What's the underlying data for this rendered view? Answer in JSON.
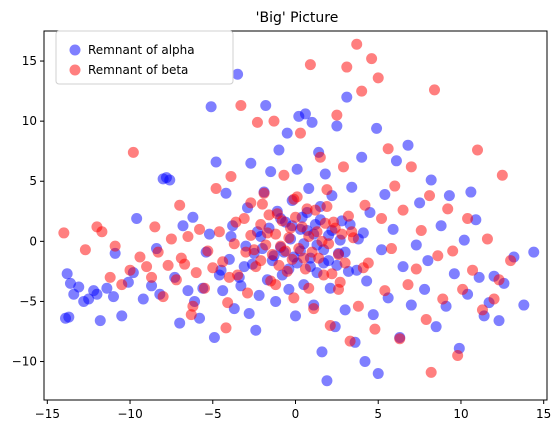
{
  "chart_data": {
    "type": "scatter",
    "title": "'Big' Picture",
    "xlabel": "",
    "ylabel": "",
    "xlim": [
      -15.2,
      15.2
    ],
    "ylim": [
      -13.2,
      17.5
    ],
    "x_ticks": [
      -15,
      -10,
      -5,
      0,
      5,
      10,
      15
    ],
    "y_ticks": [
      -10,
      -5,
      0,
      5,
      10,
      15
    ],
    "grid": false,
    "legend_position": "top-left",
    "series": [
      {
        "name": "Remnant of alpha",
        "color": "#0000ff",
        "alpha": 0.5,
        "points": [
          [
            -13.9,
            -6.4
          ],
          [
            -13.7,
            -6.3
          ],
          [
            -13.8,
            -2.7
          ],
          [
            -13.6,
            -3.5
          ],
          [
            -13.4,
            -4.4
          ],
          [
            -13.1,
            -3.8
          ],
          [
            -12.8,
            -5.0
          ],
          [
            -12.5,
            -4.8
          ],
          [
            -12.2,
            -4.1
          ],
          [
            -12.0,
            -4.4
          ],
          [
            -11.8,
            -6.6
          ],
          [
            -11.4,
            -3.9
          ],
          [
            -11.0,
            -4.6
          ],
          [
            -10.9,
            -1.0
          ],
          [
            -10.5,
            -6.2
          ],
          [
            -10.1,
            -3.4
          ],
          [
            -9.8,
            -2.6
          ],
          [
            -9.6,
            1.9
          ],
          [
            -9.2,
            -4.8
          ],
          [
            -8.7,
            -3.7
          ],
          [
            -8.4,
            -0.6
          ],
          [
            -8.2,
            -4.4
          ],
          [
            -8.0,
            5.2
          ],
          [
            -7.8,
            5.3
          ],
          [
            -7.6,
            5.1
          ],
          [
            -7.3,
            -3.0
          ],
          [
            -7.0,
            -6.8
          ],
          [
            -6.8,
            1.3
          ],
          [
            -6.5,
            -4.1
          ],
          [
            -6.2,
            2.0
          ],
          [
            -6.1,
            -5.0
          ],
          [
            -5.8,
            -6.4
          ],
          [
            -5.6,
            -3.9
          ],
          [
            -5.4,
            -0.9
          ],
          [
            -5.2,
            0.6
          ],
          [
            -5.1,
            11.2
          ],
          [
            -4.9,
            -8.0
          ],
          [
            -4.8,
            6.6
          ],
          [
            -4.6,
            -2.8
          ],
          [
            -4.4,
            -4.1
          ],
          [
            -4.2,
            4.0
          ],
          [
            -4.0,
            -1.5
          ],
          [
            -3.8,
            1.3
          ],
          [
            -3.7,
            -5.6
          ],
          [
            -3.5,
            13.9
          ],
          [
            -3.4,
            -3.0
          ],
          [
            -3.1,
            -2.1
          ],
          [
            -2.9,
            2.8
          ],
          [
            -2.8,
            -6.0
          ],
          [
            -2.7,
            6.5
          ],
          [
            -2.5,
            -1.0
          ],
          [
            -2.4,
            -7.4
          ],
          [
            -2.2,
            -4.5
          ],
          [
            -2.1,
            0.4
          ],
          [
            -1.9,
            4.1
          ],
          [
            -1.8,
            11.3
          ],
          [
            -1.7,
            -3.2
          ],
          [
            -1.5,
            5.8
          ],
          [
            -1.4,
            -1.6
          ],
          [
            -1.2,
            -5.0
          ],
          [
            -1.1,
            2.5
          ],
          [
            -1.0,
            7.6
          ],
          [
            -0.9,
            -0.5
          ],
          [
            -0.8,
            -2.8
          ],
          [
            -0.6,
            1.6
          ],
          [
            -0.5,
            9.0
          ],
          [
            -0.4,
            -4.0
          ],
          [
            -0.3,
            0.2
          ],
          [
            -0.2,
            3.4
          ],
          [
            -0.1,
            -1.3
          ],
          [
            0.0,
            -6.2
          ],
          [
            0.1,
            6.0
          ],
          [
            0.2,
            10.4
          ],
          [
            0.3,
            -0.8
          ],
          [
            0.4,
            2.0
          ],
          [
            0.5,
            -3.6
          ],
          [
            0.6,
            10.6
          ],
          [
            0.7,
            0.9
          ],
          [
            0.8,
            4.4
          ],
          [
            0.9,
            -2.1
          ],
          [
            1.0,
            9.9
          ],
          [
            1.1,
            -5.3
          ],
          [
            1.2,
            1.4
          ],
          [
            1.3,
            -0.3
          ],
          [
            1.4,
            7.4
          ],
          [
            1.5,
            2.9
          ],
          [
            1.6,
            -9.2
          ],
          [
            1.7,
            -1.8
          ],
          [
            1.8,
            5.6
          ],
          [
            1.9,
            -11.6
          ],
          [
            2.0,
            0.5
          ],
          [
            2.1,
            -3.9
          ],
          [
            2.2,
            3.8
          ],
          [
            2.4,
            -7.1
          ],
          [
            2.5,
            9.6
          ],
          [
            2.6,
            -1.0
          ],
          [
            2.8,
            1.7
          ],
          [
            3.0,
            -5.7
          ],
          [
            3.1,
            12.0
          ],
          [
            3.2,
            -2.5
          ],
          [
            3.4,
            4.5
          ],
          [
            3.6,
            -8.4
          ],
          [
            3.8,
            0.2
          ],
          [
            4.0,
            7.0
          ],
          [
            4.2,
            -10.0
          ],
          [
            4.3,
            -3.3
          ],
          [
            4.5,
            2.4
          ],
          [
            4.7,
            -6.1
          ],
          [
            4.9,
            9.4
          ],
          [
            5.0,
            -11.0
          ],
          [
            5.2,
            -0.7
          ],
          [
            5.4,
            3.9
          ],
          [
            5.6,
            -4.7
          ],
          [
            5.9,
            1.0
          ],
          [
            6.1,
            6.7
          ],
          [
            6.3,
            -8.0
          ],
          [
            6.5,
            -2.1
          ],
          [
            6.8,
            8.0
          ],
          [
            7.0,
            -5.3
          ],
          [
            7.3,
            -0.3
          ],
          [
            7.5,
            3.2
          ],
          [
            7.8,
            -4.0
          ],
          [
            8.0,
            -1.6
          ],
          [
            8.2,
            5.1
          ],
          [
            8.5,
            -7.1
          ],
          [
            8.8,
            1.3
          ],
          [
            9.1,
            -5.4
          ],
          [
            9.3,
            3.8
          ],
          [
            9.6,
            -2.7
          ],
          [
            9.9,
            -8.9
          ],
          [
            10.2,
            0.1
          ],
          [
            10.4,
            -4.4
          ],
          [
            10.6,
            4.1
          ],
          [
            10.9,
            1.8
          ],
          [
            11.1,
            -3.0
          ],
          [
            11.4,
            -6.2
          ],
          [
            11.7,
            -5.1
          ],
          [
            12.0,
            -2.9
          ],
          [
            12.3,
            -6.6
          ],
          [
            12.6,
            -3.5
          ],
          [
            13.2,
            -1.3
          ],
          [
            13.8,
            -5.3
          ],
          [
            14.4,
            -0.9
          ],
          [
            -3.0,
            -0.4
          ],
          [
            -2.6,
            -1.9
          ],
          [
            -2.3,
            0.8
          ],
          [
            -2.0,
            -0.6
          ],
          [
            -1.6,
            1.1
          ],
          [
            -1.3,
            -1.2
          ],
          [
            -0.9,
            1.9
          ],
          [
            -0.7,
            -0.9
          ],
          [
            -0.4,
            -2.3
          ],
          [
            -0.2,
            1.3
          ],
          [
            0.1,
            -1.8
          ],
          [
            0.3,
            1.0
          ],
          [
            0.5,
            -0.2
          ],
          [
            0.7,
            2.4
          ],
          [
            0.9,
            -1.4
          ],
          [
            1.1,
            0.6
          ],
          [
            1.3,
            -2.6
          ],
          [
            1.5,
            1.8
          ],
          [
            1.7,
            -0.7
          ],
          [
            2.0,
            -1.6
          ],
          [
            2.2,
            0.9
          ],
          [
            2.5,
            -2.0
          ],
          [
            2.7,
            0.1
          ],
          [
            3.0,
            -0.9
          ],
          [
            3.3,
            1.4
          ],
          [
            -4.5,
            -2.4
          ],
          [
            -3.9,
            0.4
          ],
          [
            -3.3,
            -3.7
          ],
          [
            3.7,
            -2.4
          ],
          [
            4.1,
            0.7
          ]
        ]
      },
      {
        "name": "Remnant of beta",
        "color": "#ff0000",
        "alpha": 0.5,
        "points": [
          [
            -14.0,
            0.7
          ],
          [
            -12.7,
            -0.7
          ],
          [
            -12.0,
            1.2
          ],
          [
            -11.7,
            0.8
          ],
          [
            -11.2,
            -3.0
          ],
          [
            -10.9,
            -0.4
          ],
          [
            -10.5,
            -3.6
          ],
          [
            -10.0,
            -2.4
          ],
          [
            -9.8,
            7.4
          ],
          [
            -9.4,
            -1.3
          ],
          [
            -9.0,
            -2.1
          ],
          [
            -8.7,
            -3.0
          ],
          [
            -8.5,
            1.2
          ],
          [
            -8.3,
            -0.9
          ],
          [
            -8.0,
            -4.6
          ],
          [
            -7.7,
            -2.0
          ],
          [
            -7.5,
            0.2
          ],
          [
            -7.2,
            -3.2
          ],
          [
            -7.0,
            3.0
          ],
          [
            -6.7,
            -1.9
          ],
          [
            -6.5,
            0.4
          ],
          [
            -6.2,
            -5.4
          ],
          [
            -6.0,
            -2.6
          ],
          [
            -5.8,
            1.0
          ],
          [
            -5.5,
            -3.9
          ],
          [
            -5.3,
            -0.8
          ],
          [
            -5.0,
            -2.2
          ],
          [
            -4.8,
            4.4
          ],
          [
            -4.6,
            0.8
          ],
          [
            -4.4,
            -1.7
          ],
          [
            -4.1,
            -5.1
          ],
          [
            -3.9,
            5.4
          ],
          [
            -3.7,
            -0.2
          ],
          [
            -3.5,
            -2.8
          ],
          [
            -3.3,
            11.3
          ],
          [
            -3.1,
            1.9
          ],
          [
            -2.9,
            -4.3
          ],
          [
            -2.7,
            3.2
          ],
          [
            -2.5,
            -0.7
          ],
          [
            -2.3,
            9.9
          ],
          [
            -2.1,
            -1.6
          ],
          [
            -1.9,
            4.0
          ],
          [
            -1.7,
            0.7
          ],
          [
            -1.5,
            -3.3
          ],
          [
            -1.3,
            10.0
          ],
          [
            -1.1,
            2.3
          ],
          [
            -0.9,
            -0.4
          ],
          [
            -0.7,
            5.5
          ],
          [
            -0.5,
            -2.5
          ],
          [
            -0.3,
            1.1
          ],
          [
            -0.1,
            -4.7
          ],
          [
            0.1,
            3.7
          ],
          [
            0.3,
            9.0
          ],
          [
            0.5,
            -1.4
          ],
          [
            0.7,
            2.7
          ],
          [
            0.9,
            14.7
          ],
          [
            1.1,
            -5.6
          ],
          [
            1.3,
            0.8
          ],
          [
            1.5,
            7.0
          ],
          [
            1.7,
            -2.8
          ],
          [
            1.9,
            4.3
          ],
          [
            2.1,
            -7.0
          ],
          [
            2.3,
            1.6
          ],
          [
            2.5,
            10.5
          ],
          [
            2.7,
            -3.4
          ],
          [
            2.9,
            6.2
          ],
          [
            3.1,
            14.5
          ],
          [
            3.3,
            -8.3
          ],
          [
            3.5,
            0.3
          ],
          [
            3.7,
            16.4
          ],
          [
            3.8,
            -5.4
          ],
          [
            4.0,
            12.5
          ],
          [
            4.2,
            3.0
          ],
          [
            4.4,
            -1.8
          ],
          [
            4.6,
            15.2
          ],
          [
            4.8,
            -7.3
          ],
          [
            5.0,
            13.6
          ],
          [
            5.2,
            1.9
          ],
          [
            5.4,
            -4.1
          ],
          [
            5.6,
            7.7
          ],
          [
            5.8,
            -0.6
          ],
          [
            6.0,
            4.6
          ],
          [
            6.3,
            -8.1
          ],
          [
            6.5,
            2.6
          ],
          [
            6.8,
            -3.6
          ],
          [
            7.0,
            6.2
          ],
          [
            7.3,
            -2.3
          ],
          [
            7.6,
            0.9
          ],
          [
            7.9,
            -6.5
          ],
          [
            8.1,
            3.8
          ],
          [
            8.2,
            -10.9
          ],
          [
            8.4,
            12.6
          ],
          [
            8.6,
            -1.2
          ],
          [
            8.9,
            -4.8
          ],
          [
            9.2,
            2.7
          ],
          [
            9.5,
            -0.8
          ],
          [
            9.8,
            -9.5
          ],
          [
            10.1,
            -4.0
          ],
          [
            10.4,
            1.9
          ],
          [
            10.7,
            -2.4
          ],
          [
            11.0,
            7.6
          ],
          [
            11.3,
            -5.7
          ],
          [
            11.6,
            0.2
          ],
          [
            12.0,
            -4.8
          ],
          [
            12.3,
            -3.2
          ],
          [
            12.5,
            5.5
          ],
          [
            13.0,
            -1.6
          ],
          [
            -6.9,
            -1.4
          ],
          [
            -6.3,
            -6.1
          ],
          [
            -4.2,
            -7.2
          ],
          [
            -3.0,
            -0.9
          ],
          [
            -2.7,
            0.5
          ],
          [
            -2.4,
            -2.1
          ],
          [
            -2.1,
            1.4
          ],
          [
            -1.8,
            -0.3
          ],
          [
            -1.6,
            2.2
          ],
          [
            -1.4,
            -1.1
          ],
          [
            -1.2,
            0.6
          ],
          [
            -1.0,
            -2.0
          ],
          [
            -0.8,
            1.7
          ],
          [
            -0.6,
            -0.8
          ],
          [
            -0.4,
            0.3
          ],
          [
            -0.2,
            -1.5
          ],
          [
            0.0,
            2.0
          ],
          [
            0.2,
            -0.6
          ],
          [
            0.4,
            1.2
          ],
          [
            0.6,
            -2.3
          ],
          [
            0.8,
            0.4
          ],
          [
            1.0,
            -0.9
          ],
          [
            1.2,
            2.6
          ],
          [
            1.4,
            -1.4
          ],
          [
            1.6,
            0.0
          ],
          [
            1.8,
            1.5
          ],
          [
            2.0,
            -0.2
          ],
          [
            2.2,
            -2.7
          ],
          [
            2.4,
            1.1
          ],
          [
            2.6,
            -1.1
          ],
          [
            2.8,
            0.6
          ],
          [
            3.0,
            -1.8
          ],
          [
            3.2,
            2.1
          ],
          [
            -3.6,
            1.6
          ],
          [
            -2.0,
            3.1
          ],
          [
            -0.1,
            3.5
          ],
          [
            1.9,
            2.9
          ],
          [
            3.4,
            0.8
          ],
          [
            -4.0,
            -3.0
          ],
          [
            -1.2,
            -3.6
          ],
          [
            0.8,
            -3.9
          ],
          [
            2.6,
            -4.0
          ],
          [
            4.1,
            -2.2
          ]
        ]
      }
    ]
  }
}
